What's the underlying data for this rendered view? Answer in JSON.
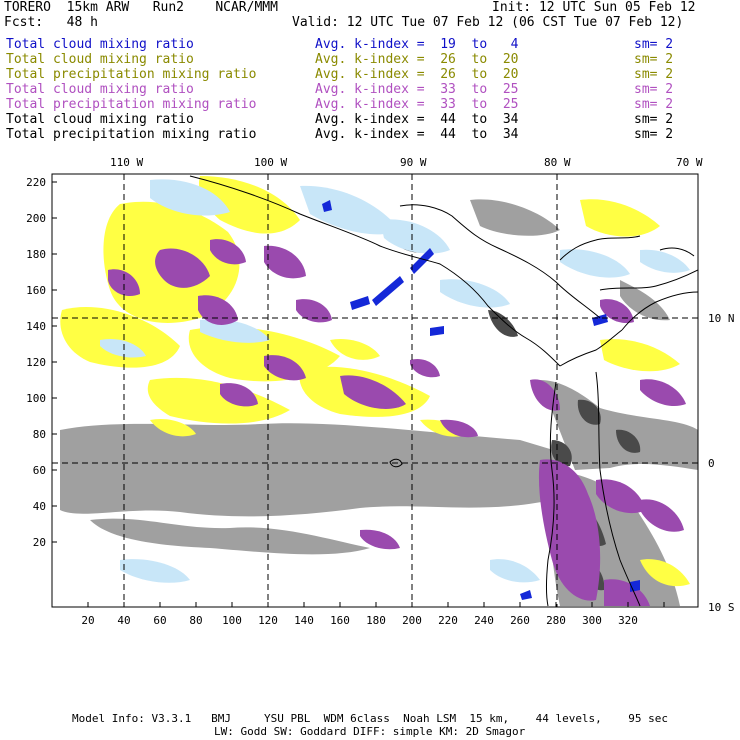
{
  "header": {
    "model": "TORERO  15km ARW   Run2    NCAR/MMM",
    "init": "Init: 12 UTC Sun 05 Feb 12",
    "fcst": "Fcst:   48 h",
    "valid": "Valid: 12 UTC Tue 07 Feb 12 (06 CST Tue 07 Feb 12)"
  },
  "legend": [
    {
      "field": "Total cloud mixing ratio",
      "kindex": "Avg. k-index =  19  to   4",
      "sm": "sm= 2",
      "color": "#1010c8"
    },
    {
      "field": "Total cloud mixing ratio",
      "kindex": "Avg. k-index =  26  to  20",
      "sm": "sm= 2",
      "color": "#8a8a00"
    },
    {
      "field": "Total precipitation mixing ratio",
      "kindex": "Avg. k-index =  26  to  20",
      "sm": "sm= 2",
      "color": "#8a8a00"
    },
    {
      "field": "Total cloud mixing ratio",
      "kindex": "Avg. k-index =  33  to  25",
      "sm": "sm= 2",
      "color": "#b050c0"
    },
    {
      "field": "Total precipitation mixing ratio",
      "kindex": "Avg. k-index =  33  to  25",
      "sm": "sm= 2",
      "color": "#b050c0"
    },
    {
      "field": "Total cloud mixing ratio",
      "kindex": "Avg. k-index =  44  to  34",
      "sm": "sm= 2",
      "color": "#000000"
    },
    {
      "field": "Total precipitation mixing ratio",
      "kindex": "Avg. k-index =  44  to  34",
      "sm": "sm= 2",
      "color": "#000000"
    }
  ],
  "axes": {
    "longitude_labels": [
      "110 W",
      "100 W",
      "90 W",
      "80 W",
      "70 W"
    ],
    "latitude_labels": [
      "10 N",
      "0",
      "10 S"
    ],
    "y_ticks": [
      "220",
      "200",
      "180",
      "160",
      "140",
      "120",
      "100",
      "80",
      "60",
      "40",
      "20"
    ],
    "x_ticks": [
      "20",
      "40",
      "60",
      "80",
      "100",
      "120",
      "140",
      "160",
      "180",
      "200",
      "220",
      "240",
      "260",
      "280",
      "300",
      "320"
    ]
  },
  "colors": {
    "yellow": "#ffff44",
    "purple": "#9a4aae",
    "gray": "#9a9a9a",
    "dark_gray": "#4a4a4a",
    "light_blue": "#c8e6f8",
    "blue": "#1428d8"
  },
  "footer": {
    "line1": "Model Info: V3.3.1   BMJ     YSU PBL  WDM 6class  Noah LSM  15 km,    44 levels,    95 sec",
    "line2": "LW: Godd SW: Goddard DIFF: simple KM: 2D Smagor"
  }
}
